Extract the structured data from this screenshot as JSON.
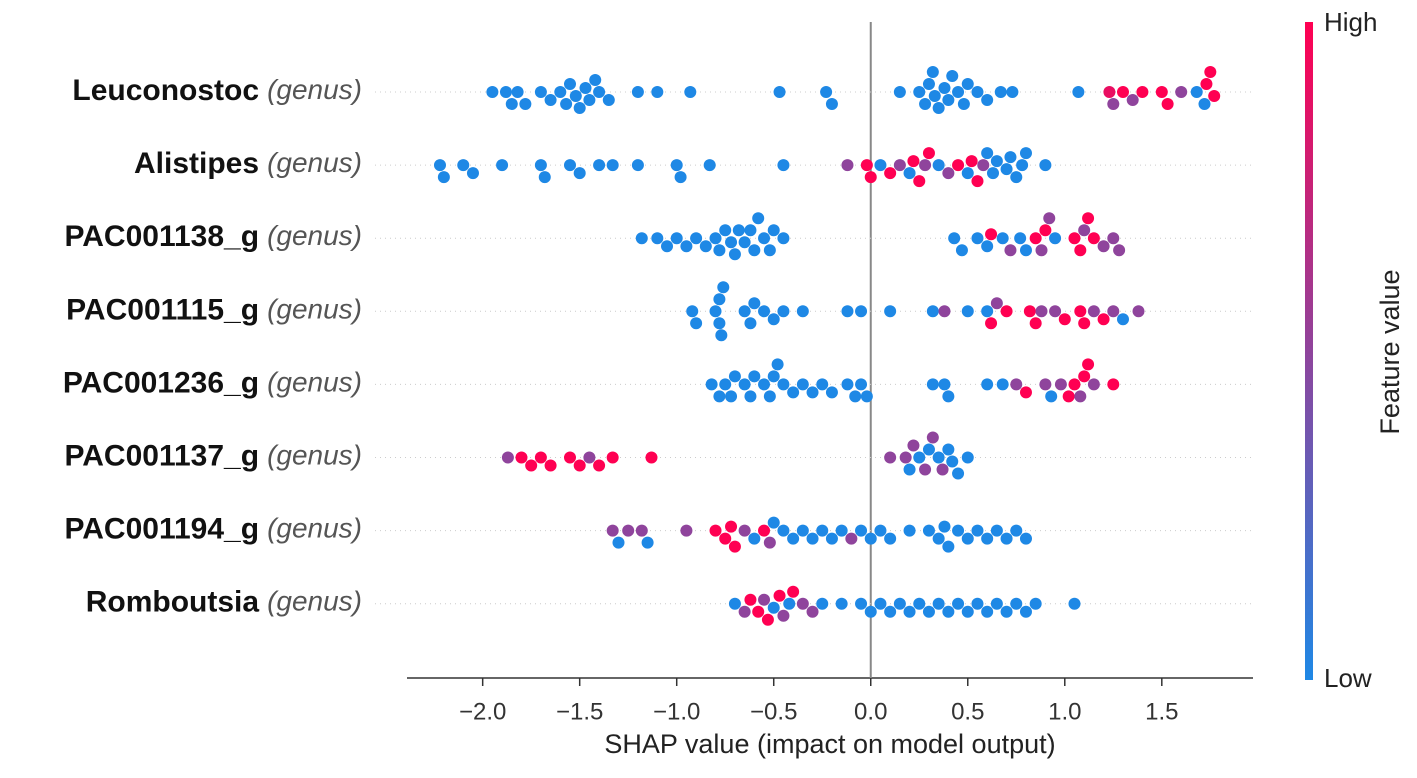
{
  "chart_data": {
    "type": "beeswarm",
    "xlabel": "SHAP value (impact on model output)",
    "xlim": [
      -2.39,
      1.97
    ],
    "xticks": [
      {
        "value": -2.0,
        "label": "−2.0"
      },
      {
        "value": -1.5,
        "label": "−1.5"
      },
      {
        "value": -1.0,
        "label": "−1.0"
      },
      {
        "value": -0.5,
        "label": "−0.5"
      },
      {
        "value": 0.0,
        "label": "0.0"
      },
      {
        "value": 0.5,
        "label": "0.5"
      },
      {
        "value": 1.0,
        "label": "1.0"
      },
      {
        "value": 1.5,
        "label": "1.5"
      }
    ],
    "zero_line": true,
    "grid": true,
    "colormap": {
      "low": "#1e88e5",
      "high": "#ff0052"
    },
    "colorbar": {
      "label": "Feature value",
      "high": "High",
      "low": "Low"
    },
    "categories": [
      "Leuconostoc",
      "Alistipes",
      "PAC001138_g",
      "PAC001115_g",
      "PAC001236_g",
      "PAC001137_g",
      "PAC001194_g",
      "Romboutsia"
    ],
    "category_suffixes": [
      "(genus)",
      "(genus)",
      "(genus)",
      "(genus)",
      "(genus)",
      "(genus)",
      "(genus)",
      "(genus)"
    ],
    "series": [
      {
        "x": [
          -1.95,
          -1.88,
          -1.85,
          -1.82,
          -1.78,
          -1.7,
          -1.65,
          -1.6,
          -1.57,
          -1.55,
          -1.52,
          -1.5,
          -1.47,
          -1.45,
          -1.42,
          -1.4,
          -1.35,
          -1.2,
          -1.1,
          -0.93,
          -0.47,
          -0.23,
          -0.2,
          0.15,
          0.25,
          0.28,
          0.3,
          0.32,
          0.33,
          0.35,
          0.38,
          0.4,
          0.42,
          0.45,
          0.48,
          0.5,
          0.55,
          0.6,
          0.67,
          0.73,
          1.07,
          1.23,
          1.25,
          1.3,
          1.35,
          1.4,
          1.5,
          1.53,
          1.6,
          1.68,
          1.72,
          1.73,
          1.75,
          1.77
        ],
        "feature_values": [
          0,
          0,
          0,
          0,
          0,
          0,
          0,
          0,
          0,
          0,
          0,
          0,
          0,
          0,
          0,
          0,
          0,
          0,
          0,
          0,
          0,
          0,
          0,
          0,
          0,
          0,
          0,
          0,
          0,
          0,
          0,
          0,
          0,
          0,
          0,
          0,
          0,
          0,
          0,
          0,
          0,
          0.9,
          0.5,
          1,
          0.5,
          1,
          1,
          1,
          0.5,
          0,
          0,
          1,
          1,
          1
        ]
      },
      {
        "x": [
          -2.22,
          -2.2,
          -2.1,
          -2.05,
          -1.9,
          -1.7,
          -1.68,
          -1.55,
          -1.5,
          -1.4,
          -1.33,
          -1.2,
          -1.0,
          -0.98,
          -0.83,
          -0.45,
          -0.12,
          -0.02,
          0.0,
          0.05,
          0.1,
          0.15,
          0.2,
          0.22,
          0.25,
          0.28,
          0.3,
          0.35,
          0.4,
          0.45,
          0.5,
          0.52,
          0.55,
          0.58,
          0.6,
          0.63,
          0.65,
          0.7,
          0.72,
          0.75,
          0.78,
          0.8,
          0.9
        ],
        "feature_values": [
          0,
          0,
          0,
          0,
          0,
          0,
          0,
          0,
          0,
          0,
          0,
          0,
          0,
          0,
          0,
          0,
          0.5,
          1,
          1,
          0,
          1,
          0.5,
          0,
          1,
          1,
          0.5,
          1,
          0,
          0.5,
          1,
          0,
          1,
          1,
          0.5,
          0,
          0,
          0,
          0,
          0,
          0,
          0,
          0,
          0
        ]
      },
      {
        "x": [
          -1.18,
          -1.1,
          -1.05,
          -1.0,
          -0.95,
          -0.9,
          -0.85,
          -0.8,
          -0.78,
          -0.75,
          -0.72,
          -0.7,
          -0.68,
          -0.65,
          -0.62,
          -0.6,
          -0.58,
          -0.55,
          -0.52,
          -0.5,
          -0.45,
          0.43,
          0.47,
          0.55,
          0.6,
          0.62,
          0.68,
          0.72,
          0.77,
          0.8,
          0.85,
          0.88,
          0.9,
          0.92,
          0.95,
          1.05,
          1.08,
          1.1,
          1.12,
          1.15,
          1.2,
          1.25,
          1.28
        ],
        "feature_values": [
          0,
          0,
          0,
          0,
          0,
          0,
          0,
          0,
          0,
          0,
          0,
          0,
          0,
          0,
          0,
          0,
          0,
          0,
          0,
          0,
          0,
          0,
          0,
          0,
          0,
          1,
          0,
          0.5,
          0,
          0,
          1,
          0.5,
          1,
          0.5,
          0,
          1,
          1,
          0.5,
          1,
          1,
          0.5,
          0.5,
          0.5
        ]
      },
      {
        "x": [
          -0.92,
          -0.9,
          -0.8,
          -0.78,
          -0.78,
          -0.77,
          -0.76,
          -0.65,
          -0.62,
          -0.6,
          -0.55,
          -0.5,
          -0.45,
          -0.35,
          -0.12,
          -0.05,
          0.1,
          0.32,
          0.38,
          0.5,
          0.6,
          0.62,
          0.65,
          0.7,
          0.82,
          0.85,
          0.88,
          0.95,
          1.0,
          1.08,
          1.1,
          1.15,
          1.2,
          1.25,
          1.3,
          1.38
        ],
        "feature_values": [
          0,
          0,
          0,
          0,
          0,
          0,
          0,
          0,
          0,
          0,
          0,
          0,
          0,
          0,
          0,
          0,
          0,
          0,
          0.5,
          0,
          0,
          1,
          0.5,
          1,
          1,
          1,
          0.5,
          0.5,
          1,
          1,
          1,
          0.5,
          1,
          0.5,
          0,
          0.5
        ]
      },
      {
        "x": [
          -0.82,
          -0.78,
          -0.75,
          -0.72,
          -0.7,
          -0.65,
          -0.62,
          -0.6,
          -0.55,
          -0.52,
          -0.5,
          -0.48,
          -0.45,
          -0.4,
          -0.35,
          -0.3,
          -0.25,
          -0.2,
          -0.12,
          -0.08,
          -0.05,
          -0.02,
          0.32,
          0.38,
          0.4,
          0.6,
          0.68,
          0.75,
          0.8,
          0.9,
          0.93,
          0.98,
          1.02,
          1.05,
          1.08,
          1.1,
          1.12,
          1.15,
          1.25
        ],
        "feature_values": [
          0,
          0,
          0,
          0,
          0,
          0,
          0,
          0,
          0,
          0,
          0,
          0,
          0,
          0,
          0,
          0,
          0,
          0,
          0,
          0,
          0,
          0,
          0,
          0,
          0,
          0,
          0,
          0.5,
          1,
          0.5,
          0,
          0.5,
          1,
          1,
          0.5,
          1,
          1,
          0.5,
          1
        ]
      },
      {
        "x": [
          -1.87,
          -1.8,
          -1.75,
          -1.7,
          -1.65,
          -1.55,
          -1.5,
          -1.45,
          -1.4,
          -1.33,
          -1.13,
          0.1,
          0.18,
          0.2,
          0.22,
          0.25,
          0.28,
          0.3,
          0.32,
          0.35,
          0.37,
          0.4,
          0.42,
          0.45,
          0.5
        ],
        "feature_values": [
          0.5,
          1,
          1,
          1,
          1,
          1,
          1,
          0.5,
          1,
          1,
          1,
          0.5,
          0.5,
          0,
          0.5,
          0,
          0.5,
          0,
          0.5,
          0,
          0.5,
          0,
          0,
          0,
          0
        ]
      },
      {
        "x": [
          -1.33,
          -1.3,
          -1.25,
          -1.18,
          -1.15,
          -0.95,
          -0.8,
          -0.75,
          -0.72,
          -0.7,
          -0.65,
          -0.6,
          -0.55,
          -0.52,
          -0.5,
          -0.45,
          -0.4,
          -0.35,
          -0.3,
          -0.25,
          -0.2,
          -0.15,
          -0.1,
          -0.05,
          0.0,
          0.05,
          0.1,
          0.2,
          0.3,
          0.35,
          0.38,
          0.4,
          0.45,
          0.5,
          0.55,
          0.6,
          0.65,
          0.7,
          0.75,
          0.8
        ],
        "feature_values": [
          0.5,
          0,
          0.5,
          0.5,
          0,
          0.5,
          1,
          1,
          1,
          1,
          0.5,
          0,
          1,
          0.5,
          0,
          0,
          0,
          0,
          0,
          0,
          0,
          0,
          0.5,
          0,
          0,
          0,
          0,
          0,
          0,
          0,
          0,
          0,
          0,
          0,
          0,
          0,
          0,
          0,
          0,
          0
        ]
      },
      {
        "x": [
          -0.7,
          -0.65,
          -0.62,
          -0.58,
          -0.55,
          -0.53,
          -0.5,
          -0.47,
          -0.45,
          -0.42,
          -0.4,
          -0.35,
          -0.3,
          -0.25,
          -0.15,
          -0.05,
          0.0,
          0.05,
          0.1,
          0.15,
          0.2,
          0.25,
          0.3,
          0.35,
          0.4,
          0.45,
          0.5,
          0.55,
          0.6,
          0.65,
          0.7,
          0.75,
          0.8,
          0.85,
          1.05
        ],
        "feature_values": [
          0,
          0.5,
          1,
          1,
          0.5,
          1,
          0,
          1,
          0.5,
          0,
          1,
          0.5,
          0.5,
          0,
          0,
          0,
          0,
          0,
          0,
          0,
          0,
          0,
          0,
          0,
          0,
          0,
          0,
          0,
          0,
          0,
          0,
          0,
          0,
          0,
          0
        ]
      }
    ]
  }
}
